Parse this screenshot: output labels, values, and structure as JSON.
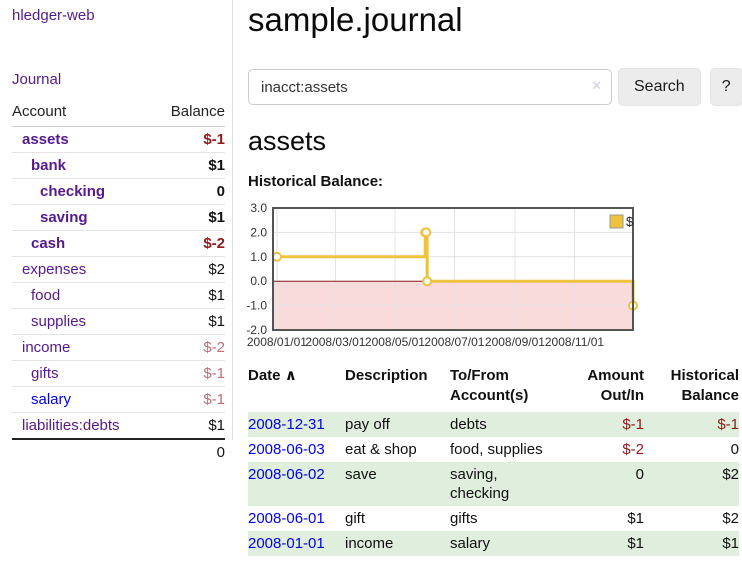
{
  "colors": {
    "accent_purple": "#551a8b",
    "link_blue": "#0000ee",
    "negative_strong": "#8e1a1a",
    "negative_soft": "#bd6e74",
    "row_highlight_green": "#dfeedd",
    "series_gold": "#EDC240"
  },
  "sidebar": {
    "brand": "hledger-web",
    "journal_link": "Journal",
    "accounts_table": {
      "headers": {
        "account": "Account",
        "balance": "Balance"
      },
      "rows": [
        {
          "name": "assets",
          "balance": "$-1",
          "level": 1,
          "bold": true,
          "neg": "strong"
        },
        {
          "name": "bank",
          "balance": "$1",
          "level": 2,
          "bold": true,
          "neg": "none"
        },
        {
          "name": "checking",
          "balance": "0",
          "level": 3,
          "bold": true,
          "neg": "none"
        },
        {
          "name": "saving",
          "balance": "$1",
          "level": 3,
          "bold": true,
          "neg": "none"
        },
        {
          "name": "cash",
          "balance": "$-2",
          "level": 2,
          "bold": true,
          "neg": "strong"
        },
        {
          "name": "expenses",
          "balance": "$2",
          "level": 1,
          "bold": false,
          "neg": "none"
        },
        {
          "name": "food",
          "balance": "$1",
          "level": 2,
          "bold": false,
          "neg": "none"
        },
        {
          "name": "supplies",
          "balance": "$1",
          "level": 2,
          "bold": false,
          "neg": "none"
        },
        {
          "name": "income",
          "balance": "$-2",
          "level": 1,
          "bold": false,
          "neg": "soft"
        },
        {
          "name": "gifts",
          "balance": "$-1",
          "level": 2,
          "bold": false,
          "neg": "soft"
        },
        {
          "name": "salary",
          "balance": "$-1",
          "level": 2,
          "bold": false,
          "neg": "soft",
          "link_color": "blue"
        },
        {
          "name": "liabilities:debts",
          "balance": "$1",
          "level": 1,
          "bold": false,
          "neg": "none"
        }
      ],
      "total": "0"
    }
  },
  "main": {
    "title": "sample.journal",
    "search": {
      "value": "inacct:assets",
      "clear_icon": "✕",
      "button": "Search",
      "help_button": "?"
    },
    "account_heading": "assets",
    "chart_label": "Historical Balance:",
    "register_table": {
      "sort": {
        "column": "Date",
        "direction": "ascending",
        "icon": "∧"
      },
      "headers": [
        "Date",
        "Description",
        "To/From Account(s)",
        "Amount Out/In",
        "Historical Balance"
      ],
      "rows": [
        {
          "date": "2008-12-31",
          "description": "pay off",
          "accounts": "debts",
          "amount": "$-1",
          "balance": "$-1",
          "amount_negative": true,
          "balance_negative": true,
          "highlighted": true
        },
        {
          "date": "2008-06-03",
          "description": "eat & shop",
          "accounts": "food, supplies",
          "amount": "$-2",
          "balance": "0",
          "amount_negative": true,
          "balance_negative": false,
          "highlighted": false
        },
        {
          "date": "2008-06-02",
          "description": "save",
          "accounts": "saving, checking",
          "amount": "0",
          "balance": "$2",
          "amount_negative": false,
          "balance_negative": false,
          "highlighted": true
        },
        {
          "date": "2008-06-01",
          "description": "gift",
          "accounts": "gifts",
          "amount": "$1",
          "balance": "$2",
          "amount_negative": false,
          "balance_negative": false,
          "highlighted": false
        },
        {
          "date": "2008-01-01",
          "description": "income",
          "accounts": "salary",
          "amount": "$1",
          "balance": "$1",
          "amount_negative": false,
          "balance_negative": false,
          "highlighted": true
        }
      ]
    }
  },
  "chart_data": {
    "type": "line",
    "title": "Historical Balance",
    "step": true,
    "series": [
      {
        "name": "$",
        "color": "#EDC240",
        "points": [
          [
            "2008-01-01",
            1
          ],
          [
            "2008-06-01",
            2
          ],
          [
            "2008-06-02",
            2
          ],
          [
            "2008-06-03",
            0
          ],
          [
            "2008-12-31",
            -1
          ]
        ]
      }
    ],
    "xrange": [
      "2008-01-01",
      "2008-12-31"
    ],
    "ylim": [
      -2,
      3
    ],
    "yticks": [
      3.0,
      2.0,
      1.0,
      0.0,
      -1.0,
      -2.0
    ],
    "ytick_labels": [
      "3.0",
      "2.0",
      "1.0",
      "0.0",
      "-1.0",
      "-2.0"
    ],
    "xtick_labels": [
      "2008/01/01",
      "2008/03/01",
      "2008/05/01",
      "2008/07/01",
      "2008/09/01",
      "2008/11/01"
    ],
    "legend": {
      "label": "$",
      "position": "top-right"
    },
    "grid": true,
    "negative_region_color": "#f9dbdb",
    "zero_line_color": "#8b1a1a"
  }
}
